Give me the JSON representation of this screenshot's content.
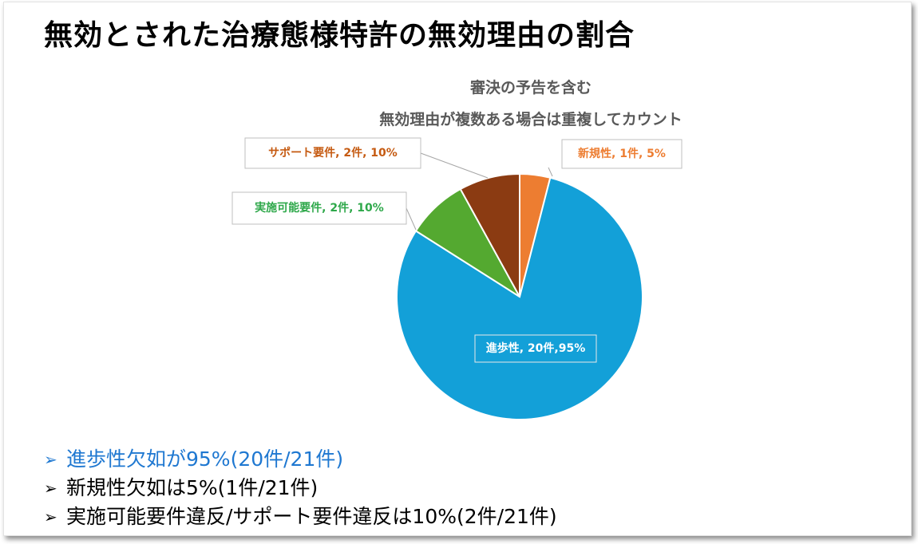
{
  "title": "無効とされた治療態様特許の無効理由の割合",
  "subtitle_lines": [
    "審決の予告を含む",
    "無効理由が複数ある場合は重複してカウント"
  ],
  "bullets": [
    {
      "icon": "arrow-right-icon",
      "text": "進歩性欠如が95%(20件/21件)",
      "color": "#1f78d1"
    },
    {
      "icon": "arrow-right-icon",
      "text": "新規性欠如は5%(1件/21件)",
      "color": "#000000"
    },
    {
      "icon": "arrow-right-icon",
      "text": "実施可能要件違反/サポート要件違反は10%(2件/21件)",
      "color": "#000000"
    }
  ],
  "chart_data": {
    "type": "pie",
    "title": "",
    "total_basis": 21,
    "slices": [
      {
        "name": "新規性",
        "count": 1,
        "percent": 5,
        "label": "新規性, 1件, 5%",
        "color": "#ed7d31",
        "label_color": "#ed7d31"
      },
      {
        "name": "進歩性",
        "count": 20,
        "percent": 95,
        "label": "進歩性, 20件,95%",
        "color": "#13a0d8",
        "label_color": "#ffffff"
      },
      {
        "name": "実施可能要件",
        "count": 2,
        "percent": 10,
        "label": "実施可能要件, 2件, 10%",
        "color": "#54a930",
        "label_color": "#2ea84a"
      },
      {
        "name": "サポート要件",
        "count": 2,
        "percent": 10,
        "label": "サポート要件, 2件, 10%",
        "color": "#8b3b12",
        "label_color": "#c55a11"
      }
    ]
  }
}
